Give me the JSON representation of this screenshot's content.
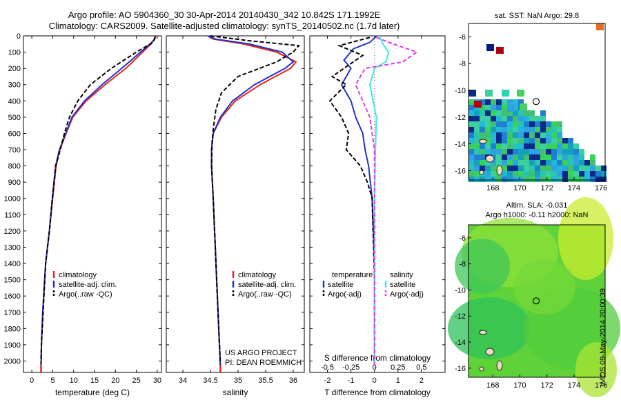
{
  "header": {
    "title_line1": "Argo profile: AO 5904360_30 30-Apr-2014 20140430_342 10.842S 171.1992E",
    "title_line2": "Climatology: CARS2009. Satellite-adjusted climatology: synTS_20140502.nc (1.7d later)"
  },
  "colors": {
    "climatology": "#e8231c",
    "satellite": "#2430c8",
    "argo": "#000000",
    "sal_satellite": "#3fe6ee",
    "sal_argo": "#e33be0"
  },
  "chart_data": [
    {
      "type": "line",
      "name": "temperature",
      "xlabel": "temperature (deg C)",
      "ylabel": "",
      "xlim": [
        -2,
        31
      ],
      "ylim": [
        2070,
        0
      ],
      "xticks": [
        "0",
        "5",
        "10",
        "15",
        "20",
        "25",
        "30"
      ],
      "yticks": [
        "0",
        "100",
        "200",
        "300",
        "400",
        "500",
        "600",
        "700",
        "800",
        "900",
        "1000",
        "1100",
        "1200",
        "1300",
        "1400",
        "1500",
        "1600",
        "1700",
        "1800",
        "1900",
        "2000"
      ],
      "legend": [
        "climatology",
        "satellite-adj. clim.",
        "Argo(..raw -QC)"
      ],
      "series": [
        {
          "name": "climatology",
          "x": [
            29.4,
            29.3,
            28.5,
            26.5,
            22.5,
            17.5,
            13.0,
            9.8,
            8.2,
            6.7,
            5.8,
            5.0,
            4.2,
            3.3,
            2.6,
            2.3,
            2.2
          ],
          "y": [
            0,
            20,
            50,
            100,
            200,
            300,
            400,
            500,
            600,
            700,
            800,
            1000,
            1200,
            1400,
            1700,
            1900,
            2030
          ]
        },
        {
          "name": "satellite-adj. clim.",
          "x": [
            29.6,
            29.4,
            28.3,
            26.0,
            21.5,
            16.8,
            12.6,
            9.6,
            8.1,
            6.6,
            5.7,
            4.9,
            4.2,
            3.3,
            2.6,
            2.3,
            2.2
          ],
          "y": [
            0,
            20,
            50,
            100,
            200,
            300,
            400,
            500,
            600,
            700,
            800,
            1000,
            1200,
            1400,
            1700,
            1900,
            2030
          ]
        },
        {
          "name": "Argo(..raw -QC)",
          "x": [
            29.5,
            29.0,
            25.0,
            19.0,
            14.0,
            11.0,
            9.0,
            7.8,
            6.8,
            5.7,
            4.9,
            4.2,
            3.3,
            2.7,
            2.3,
            2.2
          ],
          "y": [
            10,
            40,
            100,
            200,
            300,
            400,
            500,
            600,
            700,
            800,
            1000,
            1200,
            1400,
            1700,
            1900,
            2020
          ]
        }
      ]
    },
    {
      "type": "line",
      "name": "salinity",
      "xlabel": "salinity",
      "xlim": [
        33.7,
        36.2
      ],
      "ylim": [
        2070,
        0
      ],
      "xticks": [
        "34",
        "34.5",
        "35",
        "35.5",
        "36"
      ],
      "legend": [
        "climatology",
        "satellite-adj. clim.",
        "Argo(..raw -QC)"
      ],
      "series": [
        {
          "name": "climatology",
          "x": [
            34.45,
            34.55,
            35.1,
            35.7,
            36.05,
            35.95,
            35.4,
            34.95,
            34.7,
            34.55,
            34.52,
            34.52,
            34.55,
            34.6,
            34.65,
            34.68
          ],
          "y": [
            0,
            20,
            50,
            100,
            160,
            200,
            300,
            400,
            500,
            600,
            700,
            800,
            1000,
            1400,
            1800,
            2030
          ]
        },
        {
          "name": "satellite-adj. clim.",
          "x": [
            34.45,
            34.6,
            35.2,
            35.8,
            36.0,
            35.85,
            35.3,
            34.9,
            34.68,
            34.55,
            34.52,
            34.52,
            34.55,
            34.6,
            34.65,
            34.68
          ],
          "y": [
            0,
            20,
            50,
            100,
            160,
            200,
            300,
            400,
            500,
            600,
            700,
            800,
            1000,
            1400,
            1800,
            2030
          ]
        },
        {
          "name": "Argo(..raw -QC)",
          "x": [
            34.5,
            35.2,
            36.1,
            36.0,
            35.7,
            35.0,
            34.7,
            34.6,
            34.56,
            34.53,
            34.52,
            34.55,
            34.6,
            34.65,
            34.68
          ],
          "y": [
            0,
            30,
            60,
            100,
            160,
            250,
            350,
            450,
            550,
            650,
            800,
            1000,
            1400,
            1800,
            2020
          ]
        }
      ]
    },
    {
      "type": "line",
      "name": "difference",
      "xlabel": "T difference from climatology",
      "top_xlabel": "S difference from climatology",
      "xlim": [
        -2.75,
        3.0
      ],
      "ylim": [
        2070,
        0
      ],
      "xticks": [
        "-2",
        "-1",
        "0",
        "1",
        "2"
      ],
      "top_xticks": [
        "-0.5",
        "-0.25",
        "0",
        "0.25",
        "0.5"
      ],
      "legend": [
        "temperature",
        "satellite",
        "Argo(-adj)",
        "salinity",
        "satellite",
        "Argo(-adj)"
      ],
      "series": [
        {
          "name": "T satellite",
          "x": [
            0.1,
            -0.2,
            -0.9,
            -1.3,
            -1.0,
            -1.4,
            -1.0,
            -0.8,
            -0.5,
            -0.4,
            -0.25,
            -0.1,
            0.0,
            0.0
          ],
          "y": [
            0,
            40,
            80,
            150,
            200,
            300,
            400,
            500,
            600,
            700,
            800,
            1000,
            1400,
            2030
          ]
        },
        {
          "name": "T Argo(-adj)",
          "x": [
            -0.2,
            -1.5,
            -0.5,
            -1.8,
            -1.2,
            -1.9,
            -1.4,
            -1.1,
            -1.2,
            -0.6,
            -0.3,
            -0.1,
            0.0
          ],
          "y": [
            10,
            60,
            120,
            250,
            300,
            400,
            500,
            600,
            700,
            800,
            900,
            1000,
            1500
          ]
        },
        {
          "name": "S satellite",
          "x": [
            0.05,
            0.1,
            0.15,
            0.12,
            0.0,
            -0.05,
            0.02,
            0.01,
            0.0,
            0.0
          ],
          "y": [
            0,
            60,
            100,
            160,
            200,
            300,
            500,
            700,
            1000,
            2030
          ]
        },
        {
          "name": "S Argo(-adj)",
          "x": [
            0.02,
            0.2,
            0.45,
            0.3,
            -0.1,
            -0.2,
            -0.05,
            0.0,
            0.0,
            0.0
          ],
          "y": [
            10,
            50,
            100,
            160,
            200,
            300,
            500,
            700,
            1000,
            2030
          ]
        }
      ]
    },
    {
      "type": "heatmap",
      "name": "sst_map",
      "title": "sat. SST: NaN Argo: 29.8",
      "xlim": [
        166.2,
        176.3
      ],
      "ylim": [
        -16.7,
        -5.0
      ],
      "xticks": [
        "168",
        "170",
        "172",
        "174",
        "176"
      ],
      "yticks": [
        "-6",
        "-8",
        "-10",
        "-12",
        "-14",
        "-16"
      ],
      "argo_position": [
        171.2,
        -10.84
      ]
    },
    {
      "type": "heatmap",
      "name": "sla_map",
      "title_line1": "Altim. SLA: -0.031",
      "title_line2": "Argo h1000: -0.11 h2000: NaN",
      "xlim": [
        166.2,
        176.3
      ],
      "ylim": [
        -16.7,
        -5.0
      ],
      "xticks": [
        "168",
        "170",
        "172",
        "174",
        "176"
      ],
      "yticks": [
        "-6",
        "-8",
        "-10",
        "-12",
        "-14",
        "-16"
      ],
      "argo_position": [
        171.2,
        -10.84
      ]
    }
  ],
  "footer": {
    "project": "US ARGO PROJECT",
    "pi": "PI: DEAN ROEMMICH",
    "stamp": "IMOS 09-May-2014 20:00:39"
  }
}
